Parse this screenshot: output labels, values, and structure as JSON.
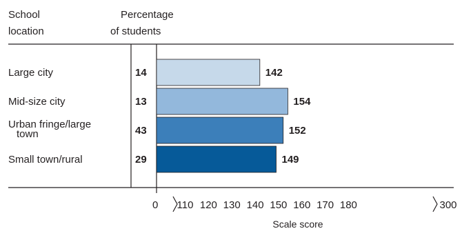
{
  "header": {
    "location_line1": "School",
    "location_line2": "location",
    "percent_line1": "Percentage",
    "percent_line2": "of students"
  },
  "chart_data": {
    "type": "bar",
    "orientation": "horizontal",
    "categories": [
      [
        "Large city"
      ],
      [
        "Mid-size city"
      ],
      [
        "Urban fringe/large",
        "town"
      ],
      [
        "Small town/rural"
      ]
    ],
    "percentages": [
      14,
      13,
      43,
      29
    ],
    "values": [
      142,
      154,
      152,
      149
    ],
    "colors": [
      "#c6d9ea",
      "#93b8dc",
      "#3c7fba",
      "#065a99"
    ],
    "xlabel": "Scale score",
    "xlim": [
      0,
      300
    ],
    "axis_break": true,
    "tick_labels": [
      "0",
      "110",
      "120",
      "130",
      "140",
      "150",
      "160",
      "170",
      "180",
      "300"
    ]
  }
}
